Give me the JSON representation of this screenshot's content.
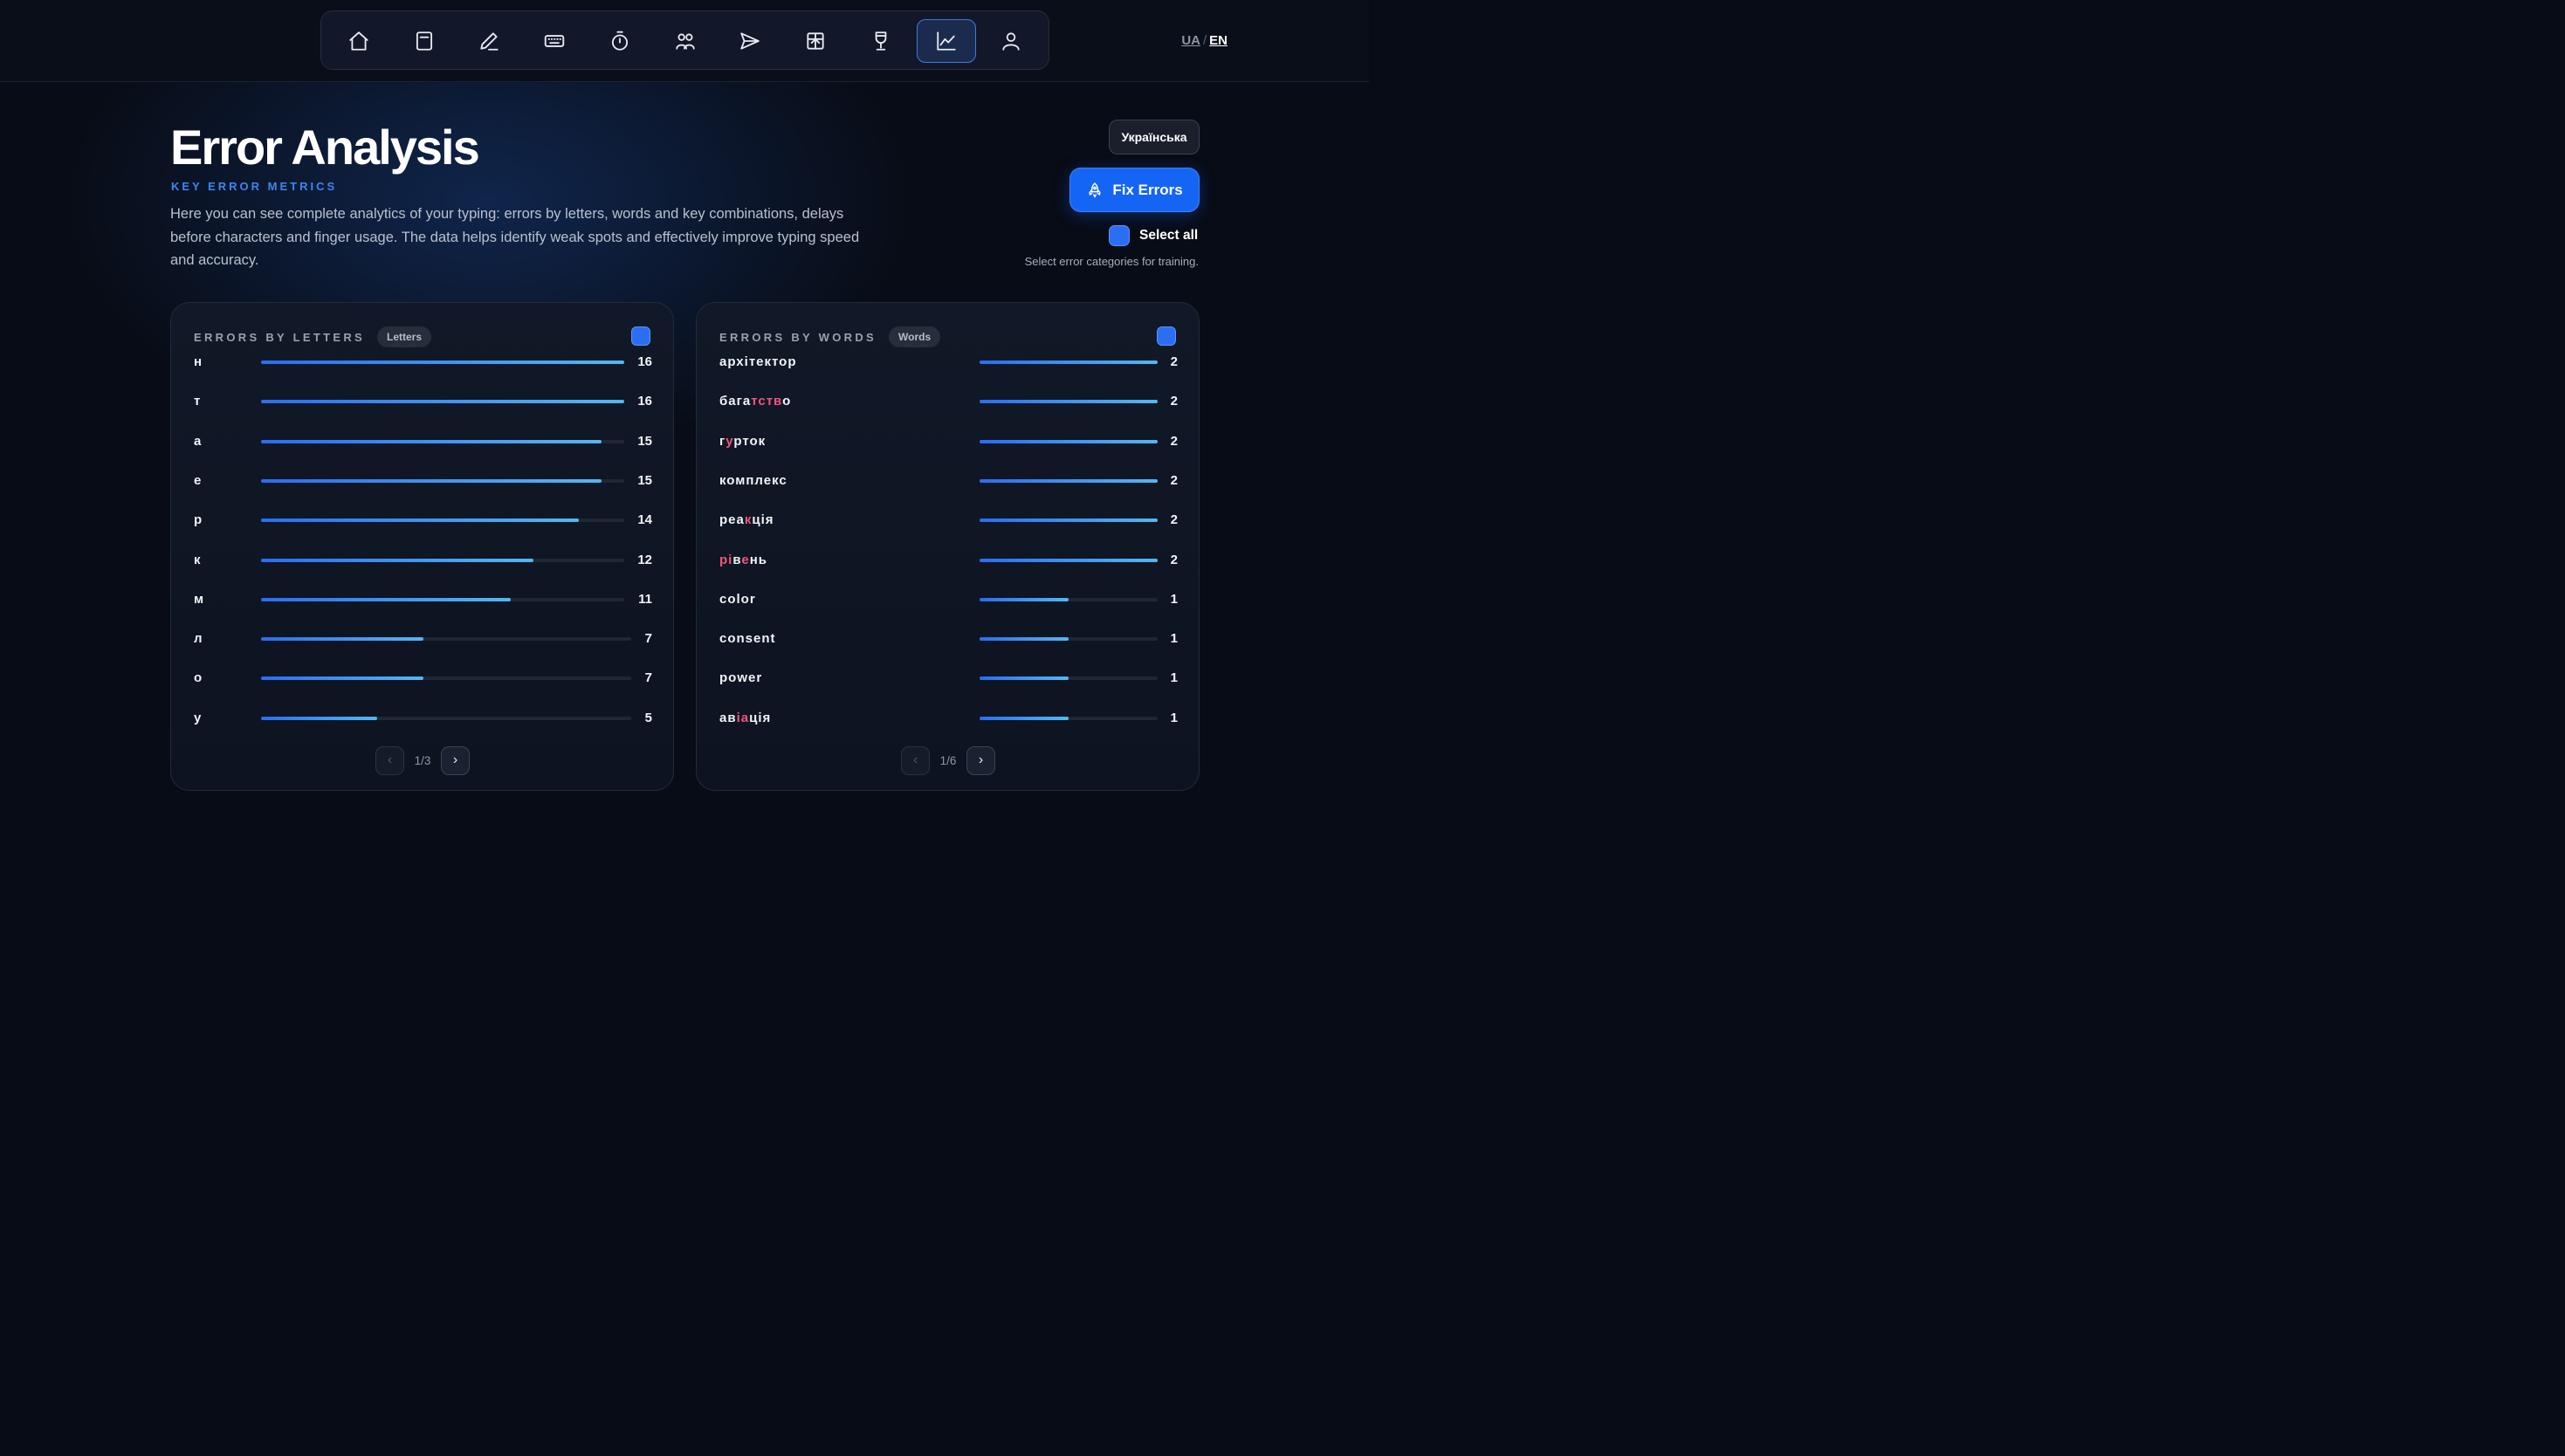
{
  "nav": {
    "items": [
      {
        "icon": "home-icon"
      },
      {
        "icon": "book-icon"
      },
      {
        "icon": "pen-icon"
      },
      {
        "icon": "keyboard-icon"
      },
      {
        "icon": "timer-icon"
      },
      {
        "icon": "users-icon"
      },
      {
        "icon": "send-icon"
      },
      {
        "icon": "gift-icon"
      },
      {
        "icon": "trophy-icon"
      },
      {
        "icon": "chart-icon",
        "active": true
      },
      {
        "icon": "user-icon"
      }
    ],
    "lang_ua": "UA",
    "lang_sep": "/",
    "lang_en": "EN"
  },
  "header": {
    "title": "Error Analysis",
    "subtitle": "KEY ERROR METRICS",
    "description": "Here you can see complete analytics of your typing: errors by letters, words and key combinations, delays before characters and finger usage. The data helps identify weak spots and effectively improve typing speed and accuracy.",
    "language_button": "Українська",
    "fix_button": "Fix Errors",
    "select_all": "Select all",
    "hint": "Select error categories for training."
  },
  "letters_panel": {
    "title": "ERRORS BY LETTERS",
    "pill": "Letters",
    "max": 16,
    "rows": [
      {
        "label": "н",
        "value": "16"
      },
      {
        "label": "т",
        "value": "16"
      },
      {
        "label": "а",
        "value": "15"
      },
      {
        "label": "е",
        "value": "15"
      },
      {
        "label": "р",
        "value": "14"
      },
      {
        "label": "к",
        "value": "12"
      },
      {
        "label": "м",
        "value": "11"
      },
      {
        "label": "л",
        "value": "7"
      },
      {
        "label": "о",
        "value": "7"
      },
      {
        "label": "у",
        "value": "5"
      }
    ],
    "pager": {
      "prev": "‹",
      "page": "1/3",
      "next": "›"
    }
  },
  "words_panel": {
    "title": "ERRORS BY WORDS",
    "pill": "Words",
    "max": 2,
    "rows": [
      {
        "parts": [
          {
            "t": "архітектор"
          }
        ],
        "value": "2"
      },
      {
        "parts": [
          {
            "t": "бага"
          },
          {
            "t": "тств",
            "err": true
          },
          {
            "t": "о"
          }
        ],
        "value": "2"
      },
      {
        "parts": [
          {
            "t": "г"
          },
          {
            "t": "у",
            "err": true
          },
          {
            "t": "рток"
          }
        ],
        "value": "2"
      },
      {
        "parts": [
          {
            "t": "комплекс"
          }
        ],
        "value": "2"
      },
      {
        "parts": [
          {
            "t": "реа"
          },
          {
            "t": "к",
            "err": true
          },
          {
            "t": "ція"
          }
        ],
        "value": "2"
      },
      {
        "parts": [
          {
            "t": "рі",
            "err": true
          },
          {
            "t": "в"
          },
          {
            "t": "е",
            "err": true
          },
          {
            "t": "нь"
          }
        ],
        "value": "2"
      },
      {
        "parts": [
          {
            "t": "color"
          }
        ],
        "value": "1"
      },
      {
        "parts": [
          {
            "t": "consent"
          }
        ],
        "value": "1"
      },
      {
        "parts": [
          {
            "t": "power"
          }
        ],
        "value": "1"
      },
      {
        "parts": [
          {
            "t": "ав"
          },
          {
            "t": "і",
            "err": true
          },
          {
            "t": "а",
            "err": true
          },
          {
            "t": "ція"
          }
        ],
        "value": "1"
      }
    ],
    "pager": {
      "prev": "‹",
      "page": "1/6",
      "next": "›"
    }
  },
  "colors": {
    "accent": "#1565f5",
    "error_letter": "#f0567a",
    "background": "#080c16"
  }
}
